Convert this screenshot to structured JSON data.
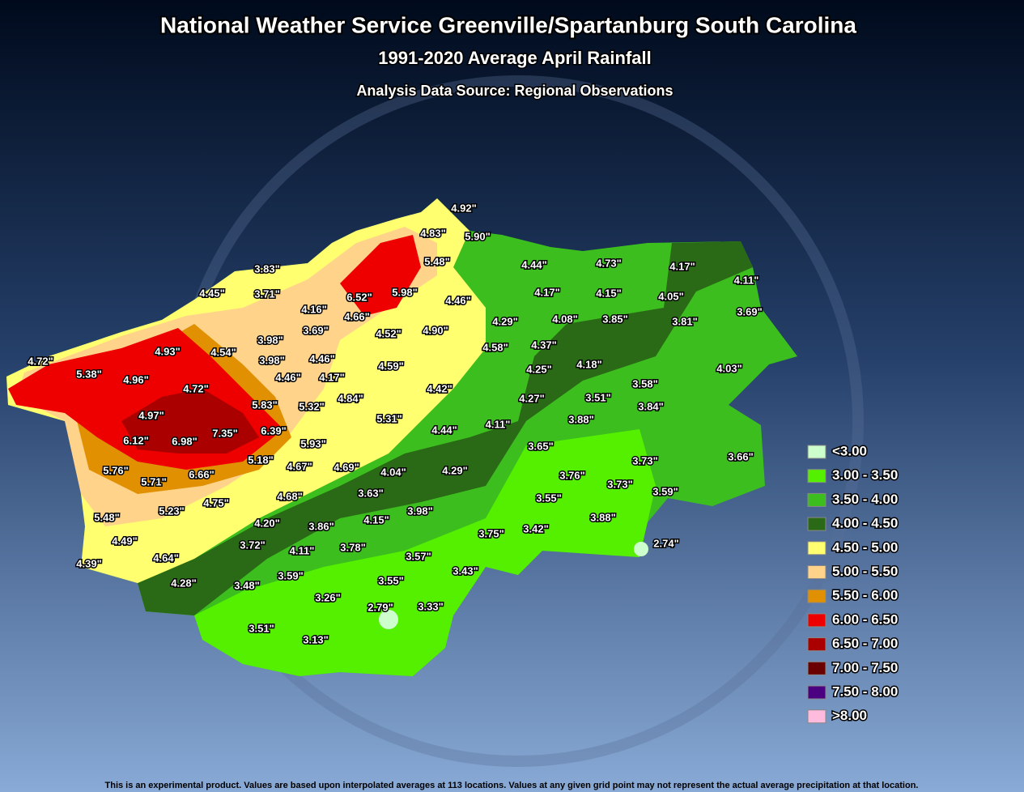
{
  "header": {
    "title": "National Weather Service Greenville/Spartanburg South Carolina",
    "subtitle": "1991-2020 Average April Rainfall",
    "source": "Analysis Data Source: Regional Observations"
  },
  "stations": [
    "4.92\"",
    "4.83\"",
    "5.90\"",
    "5.48\"",
    "4.44\"",
    "4.73\"",
    "4.17\"",
    "4.11\"",
    "3.83\"",
    "3.71\"",
    "4.45\"",
    "6.52\"",
    "5.98\"",
    "4.46\"",
    "4.17\"",
    "4.15\"",
    "4.05\"",
    "3.69\"",
    "4.16\"",
    "4.66\"",
    "3.98\"",
    "3.69\"",
    "4.52\"",
    "4.90\"",
    "4.29\"",
    "4.08\"",
    "3.85\"",
    "3.81\"",
    "4.72\"",
    "5.38\"",
    "4.93\"",
    "4.54\"",
    "3.98\"",
    "4.46\"",
    "4.58\"",
    "4.37\"",
    "4.59\"",
    "4.18\"",
    "4.03\"",
    "4.96\"",
    "4.72\"",
    "4.46\"",
    "4.17\"",
    "4.25\"",
    "3.58\"",
    "4.42\"",
    "4.84\"",
    "5.83\"",
    "5.32\"",
    "4.27\"",
    "3.51\"",
    "3.84\"",
    "4.97\"",
    "5.31\"",
    "3.88\"",
    "4.44\"",
    "4.11\"",
    "6.12\"",
    "6.98\"",
    "7.35\"",
    "6.39\"",
    "5.93\"",
    "3.65\"",
    "5.18\"",
    "4.67\"",
    "4.69\"",
    "4.04\"",
    "4.29\"",
    "3.66\"",
    "3.73\"",
    "5.76\"",
    "6.66\"",
    "5.71\"",
    "3.76\"",
    "3.73\"",
    "3.59\"",
    "4.75\"",
    "3.63\"",
    "3.55\"",
    "5.48\"",
    "5.23\"",
    "4.68\"",
    "3.98\"",
    "4.15\"",
    "4.20\"",
    "3.88\"",
    "3.75\"",
    "3.42\"",
    "3.86\"",
    "4.49\"",
    "3.72\"",
    "3.78\"",
    "2.74\"",
    "3.57\"",
    "4.11\"",
    "4.39\"",
    "4.64\"",
    "3.43\"",
    "3.59\"",
    "4.28\"",
    "3.48\"",
    "3.55\"",
    "3.26\"",
    "2.79\"",
    "3.33\"",
    "3.51\"",
    "3.13\""
  ],
  "legend": [
    {
      "label": "<3.00",
      "color": "#ccffcc"
    },
    {
      "label": "3.00 - 3.50",
      "color": "#55f000"
    },
    {
      "label": "3.50 - 4.00",
      "color": "#3cbf1e"
    },
    {
      "label": "4.00 - 4.50",
      "color": "#2a6a16"
    },
    {
      "label": "4.50 - 5.00",
      "color": "#ffff70"
    },
    {
      "label": "5.00 - 5.50",
      "color": "#ffd38a"
    },
    {
      "label": "5.50 - 6.00",
      "color": "#e09000"
    },
    {
      "label": "6.00 - 6.50",
      "color": "#ee0000"
    },
    {
      "label": "6.50 - 7.00",
      "color": "#aa0000"
    },
    {
      "label": "7.00 - 7.50",
      "color": "#6a0000"
    },
    {
      "label": "7.50 - 8.00",
      "color": "#4b0082"
    },
    {
      "label": ">8.00",
      "color": "#ffbbdd"
    }
  ],
  "footer": "This is an experimental product. Values are based upon  interpolated averages at 113 locations. Values at any given grid point may not represent the actual average precipitation at that location."
}
